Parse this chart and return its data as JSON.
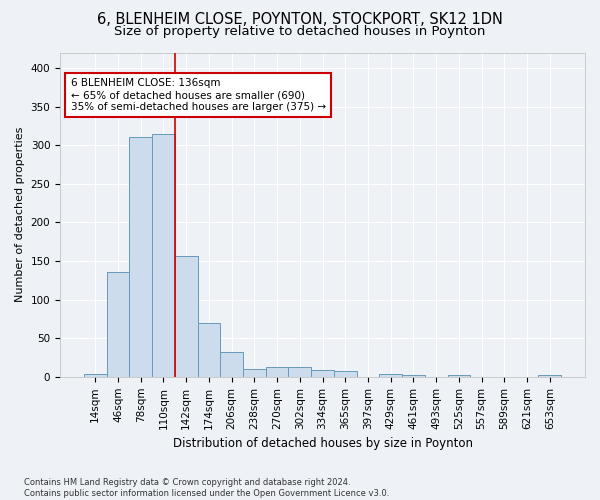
{
  "title1": "6, BLENHEIM CLOSE, POYNTON, STOCKPORT, SK12 1DN",
  "title2": "Size of property relative to detached houses in Poynton",
  "xlabel": "Distribution of detached houses by size in Poynton",
  "ylabel": "Number of detached properties",
  "footnote": "Contains HM Land Registry data © Crown copyright and database right 2024.\nContains public sector information licensed under the Open Government Licence v3.0.",
  "bin_labels": [
    "14sqm",
    "46sqm",
    "78sqm",
    "110sqm",
    "142sqm",
    "174sqm",
    "206sqm",
    "238sqm",
    "270sqm",
    "302sqm",
    "334sqm",
    "365sqm",
    "397sqm",
    "429sqm",
    "461sqm",
    "493sqm",
    "525sqm",
    "557sqm",
    "589sqm",
    "621sqm",
    "653sqm"
  ],
  "bar_heights": [
    4,
    136,
    311,
    315,
    157,
    70,
    32,
    10,
    13,
    13,
    9,
    7,
    0,
    4,
    2,
    0,
    2,
    0,
    0,
    0,
    2
  ],
  "bar_color": "#ccdcec",
  "bar_edge_color": "#6699bb",
  "vline_x": 3.5,
  "annotation_text": "6 BLENHEIM CLOSE: 136sqm\n← 65% of detached houses are smaller (690)\n35% of semi-detached houses are larger (375) →",
  "annotation_box_color": "white",
  "annotation_box_edge_color": "#cc0000",
  "vline_color": "#cc0000",
  "ylim": [
    0,
    420
  ],
  "yticks": [
    0,
    50,
    100,
    150,
    200,
    250,
    300,
    350,
    400
  ],
  "background_color": "#eef2f7",
  "grid_color": "white",
  "title1_fontsize": 10.5,
  "title2_fontsize": 9.5,
  "xlabel_fontsize": 8.5,
  "ylabel_fontsize": 8,
  "tick_fontsize": 7.5,
  "annot_fontsize": 7.5
}
